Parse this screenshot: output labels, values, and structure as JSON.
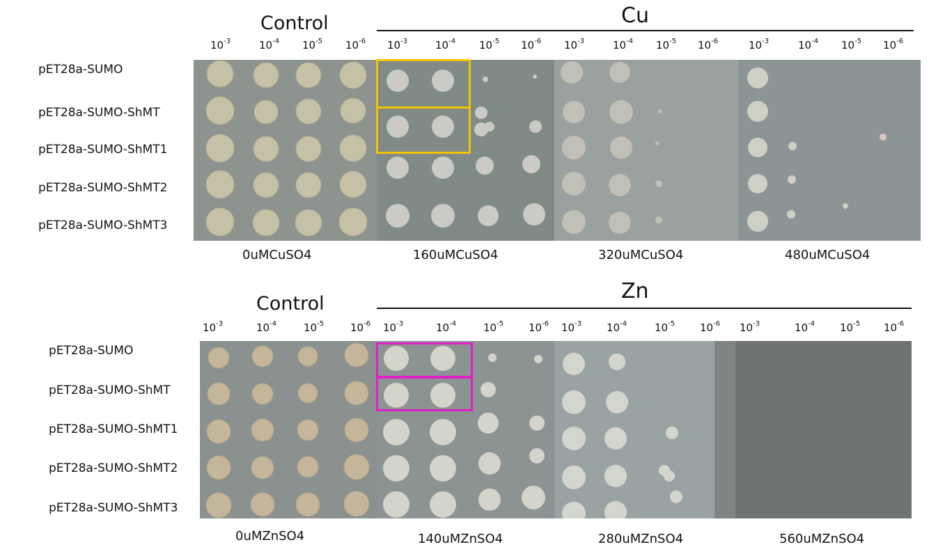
{
  "cu_panel": {
    "control_title": "Control",
    "metal_title": "Cu",
    "dilutions": [
      "10",
      "10",
      "10",
      "10",
      "10",
      "10",
      "10",
      "10",
      "10",
      "10",
      "10",
      "10",
      "10",
      "10",
      "10",
      "10"
    ],
    "exponents": [
      "-3",
      "-4",
      "-5",
      "-6",
      "-3",
      "-4",
      "-5",
      "-6",
      "-3",
      "-4",
      "-5",
      "-6",
      "-3",
      "-4",
      "-5",
      "-6"
    ],
    "strains": [
      "pET28a-SUMO",
      "pET28a-SUMO-ShMT",
      "pET28a-SUMO-ShMT1",
      "pET28a-SUMO-ShMT2",
      "pET28a-SUMO-ShMT3"
    ],
    "concentrations": [
      "0uMCuSO4",
      "160uMCuSO4",
      "320uMCuSO4",
      "480uMCuSO4"
    ],
    "highlight_color": "#f3c300",
    "plate_colors": [
      "#8d938f",
      "#808a86",
      "#9aa19e",
      "#8b9596"
    ]
  },
  "zn_panel": {
    "control_title": "Control",
    "metal_title": "Zn",
    "dilutions": [
      "10",
      "10",
      "10",
      "10",
      "10",
      "10",
      "10",
      "10",
      "10",
      "10",
      "10",
      "10",
      "10",
      "10",
      "10",
      "10"
    ],
    "exponents": [
      "-3",
      "-4",
      "-5",
      "-6",
      "-3",
      "-4",
      "-5",
      "-6",
      "-3",
      "-4",
      "-5",
      "-6",
      "-3",
      "-4",
      "-5",
      "-6"
    ],
    "strains": [
      "pET28a-SUMO",
      "pET28a-SUMO-ShMT",
      "pET28a-SUMO-ShMT1",
      "pET28a-SUMO-ShMT2",
      "pET28a-SUMO-ShMT3"
    ],
    "concentrations": [
      "0uMZnSO4",
      "140uMZnSO4",
      "280uMZnSO4",
      "560uMZnSO4"
    ],
    "highlight_color": "#e01fc6",
    "plate_colors": [
      "#8a918f",
      "#8b9393",
      "#9aa3a4",
      "#6f7473"
    ]
  }
}
